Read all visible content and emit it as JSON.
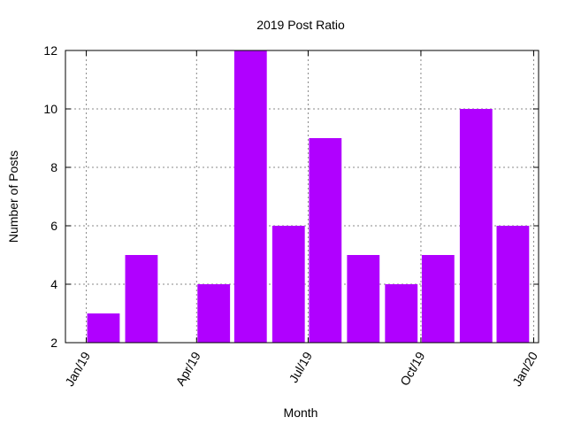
{
  "chart_data": {
    "type": "bar",
    "title": "2019 Post Ratio",
    "xlabel": "Month",
    "ylabel": "Number of Posts",
    "bar_color": "#b000ff",
    "grid": true,
    "ylim": [
      2,
      12
    ],
    "yticks": [
      2,
      4,
      6,
      8,
      10,
      12
    ],
    "xlim": [
      "2018-12-15",
      "2020-01-05"
    ],
    "xticks": [
      {
        "date": "2019-01-01",
        "label": "Jan/19"
      },
      {
        "date": "2019-04-01",
        "label": "Apr/19"
      },
      {
        "date": "2019-07-01",
        "label": "Jul/19"
      },
      {
        "date": "2019-10-01",
        "label": "Oct/19"
      },
      {
        "date": "2020-01-01",
        "label": "Jan/20"
      }
    ],
    "categories": [
      "2019-01",
      "2019-02",
      "2019-03",
      "2019-04",
      "2019-05",
      "2019-06",
      "2019-07",
      "2019-08",
      "2019-09",
      "2019-10",
      "2019-11",
      "2019-12"
    ],
    "values": [
      3,
      5,
      2,
      4,
      12,
      6,
      9,
      5,
      4,
      5,
      10,
      6
    ]
  }
}
